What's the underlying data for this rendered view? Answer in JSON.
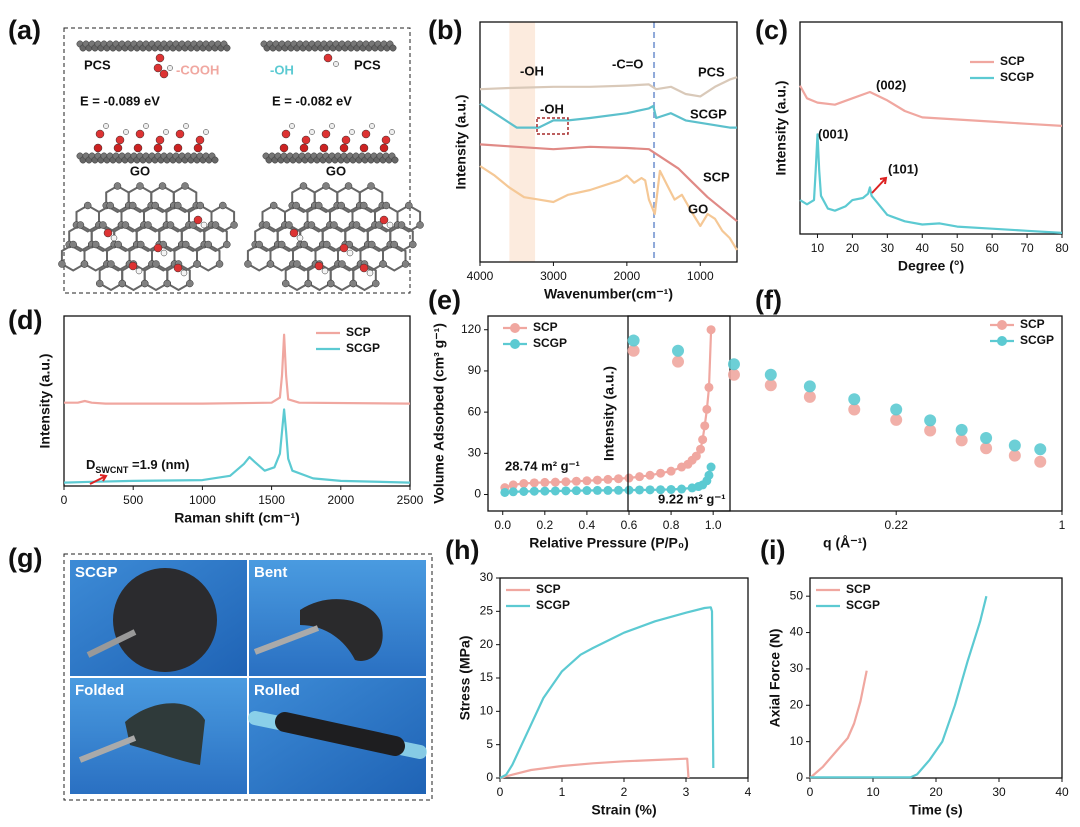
{
  "panels": {
    "a": {
      "label": "(a)",
      "left": {
        "group": "PCS",
        "functional": "-COOH",
        "energy": "E = -0.089 eV",
        "substrate": "GO"
      },
      "right": {
        "group": "PCS",
        "functional": "-OH",
        "energy": "E = -0.082 eV",
        "substrate": "GO"
      }
    },
    "g": {
      "label": "(g)",
      "photos": [
        "SCGP",
        "Bent",
        "Folded",
        "Rolled"
      ]
    }
  },
  "chart_data": [
    {
      "label": "(b)",
      "type": "line",
      "xlabel": "Wavenumber(cm⁻¹)",
      "ylabel": "Intensity (a.u.)",
      "xlim": [
        4000,
        500
      ],
      "xticks": [
        4000,
        3000,
        2000,
        1000
      ],
      "ylim": [
        0,
        10
      ],
      "legend": "inline",
      "highlight_band": [
        3600,
        3250
      ],
      "reference_line": 1630,
      "annotations": [
        "-OH",
        "-C=O",
        "-OH"
      ],
      "series": [
        {
          "name": "PCS",
          "color": "#d9c9b9",
          "x": [
            4000,
            3600,
            3000,
            2500,
            2000,
            1700,
            1600,
            1400,
            1200,
            1000,
            800,
            600,
            500
          ],
          "values": [
            7.2,
            7.25,
            7.3,
            7.3,
            7.35,
            7.4,
            7.2,
            7.3,
            7.0,
            6.9,
            7.3,
            7.6,
            7.7
          ]
        },
        {
          "name": "SCGP",
          "color": "#5cc0cc",
          "x": [
            4000,
            3800,
            3500,
            3200,
            3000,
            2800,
            2500,
            2000,
            1700,
            1640,
            1600,
            1400,
            1200,
            1000,
            800,
            600,
            500
          ],
          "values": [
            6.6,
            6.2,
            5.6,
            5.6,
            5.9,
            5.9,
            6.0,
            6.2,
            6.4,
            6.5,
            6.0,
            6.2,
            5.9,
            5.8,
            5.7,
            5.6,
            5.6
          ]
        },
        {
          "name": "SCP",
          "color": "#e08a86",
          "x": [
            4000,
            3500,
            3000,
            2500,
            2000,
            1700,
            1500,
            1300,
            1100,
            900,
            700,
            500
          ],
          "values": [
            4.9,
            4.8,
            4.7,
            4.8,
            4.75,
            4.7,
            4.3,
            3.9,
            3.3,
            2.7,
            2.2,
            1.7
          ]
        },
        {
          "name": "GO",
          "color": "#f5c896",
          "x": [
            4000,
            3800,
            3600,
            3400,
            3200,
            3000,
            2800,
            2500,
            2300,
            2100,
            2000,
            1900,
            1800,
            1750,
            1700,
            1620,
            1550,
            1450,
            1350,
            1250,
            1100,
            1000,
            900,
            800,
            700,
            600,
            500
          ],
          "values": [
            4.0,
            3.6,
            3.1,
            2.7,
            2.6,
            2.5,
            2.8,
            3.0,
            3.2,
            3.4,
            3.6,
            3.3,
            3.5,
            3.4,
            2.6,
            2.0,
            3.8,
            3.2,
            2.6,
            2.8,
            2.0,
            1.5,
            2.0,
            1.8,
            1.3,
            1.0,
            0.5
          ]
        }
      ]
    },
    {
      "label": "(c)",
      "type": "line",
      "xlabel": "Degree (°)",
      "ylabel": "Intensity (a.u.)",
      "xlim": [
        5,
        80
      ],
      "xticks": [
        10,
        20,
        30,
        40,
        50,
        60,
        70,
        80
      ],
      "ylim": [
        0,
        10
      ],
      "legend": "upper right",
      "annotations": [
        "(002)",
        "(001)",
        "(101)"
      ],
      "series": [
        {
          "name": "SCP",
          "color": "#f0a7a0",
          "x": [
            5,
            7,
            10,
            15,
            20,
            25,
            30,
            35,
            40,
            50,
            60,
            70,
            80
          ],
          "values": [
            7.0,
            6.4,
            6.2,
            6.1,
            6.4,
            6.7,
            6.3,
            5.8,
            5.5,
            5.4,
            5.3,
            5.2,
            5.1
          ]
        },
        {
          "name": "SCGP",
          "color": "#5ccad2",
          "x": [
            5,
            7,
            9,
            9.5,
            10,
            10.5,
            11,
            13,
            15,
            18,
            20,
            23,
            24.5,
            25,
            25.5,
            27,
            30,
            35,
            40,
            45,
            50,
            60,
            70,
            80
          ],
          "values": [
            1.6,
            1.4,
            1.6,
            3.0,
            4.7,
            3.0,
            1.8,
            1.2,
            1.1,
            1.3,
            1.6,
            1.7,
            1.9,
            2.2,
            1.8,
            1.5,
            0.9,
            0.6,
            0.45,
            0.5,
            0.35,
            0.25,
            0.15,
            0.05
          ]
        }
      ]
    },
    {
      "label": "(d)",
      "type": "line",
      "xlabel": "Raman shift (cm⁻¹)",
      "ylabel": "Intensity (a.u.)",
      "xlim": [
        0,
        2500
      ],
      "xticks": [
        0,
        500,
        1000,
        1500,
        2000,
        2500
      ],
      "ylim": [
        0,
        10
      ],
      "legend": "upper right",
      "annotations": [
        {
          "text": "D",
          "sub": "SWCNT",
          "after": " =1.9 (nm)"
        }
      ],
      "series": [
        {
          "name": "SCP",
          "color": "#f0a7a0",
          "x": [
            0,
            100,
            150,
            200,
            300,
            1000,
            1500,
            1560,
            1575,
            1590,
            1605,
            1620,
            1700,
            2500
          ],
          "values": [
            4.9,
            4.9,
            5.0,
            4.9,
            4.85,
            4.85,
            4.9,
            5.2,
            6.5,
            8.9,
            6.5,
            5.1,
            4.9,
            4.85
          ]
        },
        {
          "name": "SCGP",
          "color": "#5ccad2",
          "x": [
            0,
            200,
            500,
            1000,
            1200,
            1300,
            1340,
            1380,
            1450,
            1520,
            1560,
            1575,
            1590,
            1605,
            1620,
            1650,
            1800,
            2000,
            2500
          ],
          "values": [
            0.2,
            0.25,
            0.3,
            0.35,
            0.6,
            1.3,
            1.7,
            1.4,
            0.9,
            1.1,
            1.9,
            3.2,
            4.5,
            3.2,
            1.6,
            0.9,
            0.45,
            0.3,
            0.2
          ]
        }
      ]
    },
    {
      "label": "(e)",
      "type": "line",
      "markers": true,
      "xlabel": "Relative Pressure (P/P₀)",
      "ylabel": "Volume Adsorbed (cm³ g⁻¹)",
      "xlim": [
        -0.07,
        1.08
      ],
      "xticks": [
        {
          "value": 0,
          "label": "0.0"
        },
        0.2,
        0.4,
        0.6,
        0.8,
        {
          "value": 1,
          "label": "1.0"
        }
      ],
      "ylim": [
        -12,
        130
      ],
      "yticks": [
        0,
        30,
        60,
        90,
        120
      ],
      "legend": "upper left",
      "annotations": [
        "28.74 m² g⁻¹",
        "9.22 m² g⁻¹"
      ],
      "series": [
        {
          "name": "SCP",
          "color": "#f0a7a0",
          "x": [
            0.01,
            0.05,
            0.1,
            0.15,
            0.2,
            0.25,
            0.3,
            0.35,
            0.4,
            0.45,
            0.5,
            0.55,
            0.6,
            0.65,
            0.7,
            0.75,
            0.8,
            0.85,
            0.88,
            0.9,
            0.92,
            0.94,
            0.95,
            0.96,
            0.97,
            0.98,
            0.99
          ],
          "values": [
            5,
            7,
            8,
            8.5,
            8.8,
            9,
            9.3,
            9.7,
            10,
            10.5,
            11,
            11.5,
            12,
            13,
            14,
            15.5,
            17,
            20,
            22,
            25,
            28,
            33,
            40,
            50,
            62,
            78,
            120
          ]
        },
        {
          "name": "SCGP",
          "color": "#5ccad2",
          "x": [
            0.01,
            0.05,
            0.1,
            0.15,
            0.2,
            0.25,
            0.3,
            0.35,
            0.4,
            0.45,
            0.5,
            0.55,
            0.6,
            0.65,
            0.7,
            0.75,
            0.8,
            0.85,
            0.9,
            0.93,
            0.95,
            0.97,
            0.98,
            0.99
          ],
          "values": [
            1.5,
            2,
            2.2,
            2.4,
            2.5,
            2.6,
            2.7,
            2.8,
            2.9,
            3,
            3,
            3.1,
            3.2,
            3.3,
            3.4,
            3.5,
            3.7,
            4,
            4.8,
            5.8,
            7,
            10,
            14,
            20
          ]
        }
      ]
    },
    {
      "label": "(f)",
      "type": "scatter",
      "xlabel": "q (Å⁻¹)",
      "ylabel": "Intensity (a.u.)",
      "xscale": "log",
      "yscale": "log",
      "xlim": [
        0.019,
        1
      ],
      "xticks": [
        0.22,
        1
      ],
      "ylim": [
        1,
        100
      ],
      "legend": "upper right",
      "series": [
        {
          "name": "SCP",
          "color": "#f0a7a0",
          "x": [
            0.02,
            0.03,
            0.05,
            0.07,
            0.1,
            0.15,
            0.22,
            0.3,
            0.4,
            0.5,
            0.65,
            0.82
          ],
          "values": [
            44,
            34,
            25,
            19.5,
            14.8,
            11,
            8.6,
            6.7,
            5.3,
            4.4,
            3.7,
            3.2
          ]
        },
        {
          "name": "SCGP",
          "color": "#5ccad2",
          "x": [
            0.02,
            0.03,
            0.05,
            0.07,
            0.1,
            0.15,
            0.22,
            0.3,
            0.4,
            0.5,
            0.65,
            0.82
          ],
          "values": [
            56,
            44,
            32,
            25,
            19,
            14,
            11,
            8.5,
            6.8,
            5.6,
            4.7,
            4.3
          ]
        }
      ]
    },
    {
      "label": "(h)",
      "type": "line",
      "xlabel": "Strain (%)",
      "ylabel": "Stress (MPa)",
      "xlim": [
        0,
        4
      ],
      "xticks": [
        0,
        1,
        2,
        3,
        4
      ],
      "ylim": [
        0,
        30
      ],
      "yticks": [
        0,
        5,
        10,
        15,
        20,
        25,
        30
      ],
      "legend": "upper left",
      "series": [
        {
          "name": "SCP",
          "color": "#f0a7a0",
          "x": [
            0,
            0.2,
            0.5,
            1,
            1.5,
            2,
            2.5,
            3,
            3.02,
            3.04
          ],
          "values": [
            0,
            0.5,
            1.2,
            1.8,
            2.2,
            2.5,
            2.7,
            2.9,
            2.9,
            0
          ]
        },
        {
          "name": "SCGP",
          "color": "#5ccad2",
          "x": [
            0,
            0.1,
            0.2,
            0.3,
            0.5,
            0.7,
            1,
            1.3,
            1.5,
            2,
            2.5,
            3,
            3.3,
            3.4,
            3.42,
            3.44
          ],
          "values": [
            0,
            0.5,
            2,
            4,
            8,
            12,
            16,
            18.5,
            19.5,
            21.8,
            23.5,
            24.8,
            25.5,
            25.6,
            25,
            1.5
          ]
        }
      ]
    },
    {
      "label": "(i)",
      "type": "line",
      "xlabel": "Time (s)",
      "ylabel": "Axial Force (N)",
      "xlim": [
        0,
        40
      ],
      "xticks": [
        0,
        10,
        20,
        30,
        40
      ],
      "ylim": [
        0,
        55
      ],
      "yticks": [
        0,
        10,
        20,
        30,
        40,
        50
      ],
      "legend": "upper left",
      "series": [
        {
          "name": "SCP",
          "color": "#f0a7a0",
          "x": [
            0,
            2,
            4,
            6,
            7,
            8,
            9
          ],
          "values": [
            0,
            3,
            7,
            11,
            15,
            21,
            29.5
          ]
        },
        {
          "name": "SCGP",
          "color": "#5ccad2",
          "x": [
            0,
            16,
            17,
            19,
            21,
            23,
            25,
            27,
            28
          ],
          "values": [
            0.2,
            0.2,
            1,
            5,
            10,
            20,
            32,
            43,
            50
          ]
        }
      ]
    }
  ]
}
